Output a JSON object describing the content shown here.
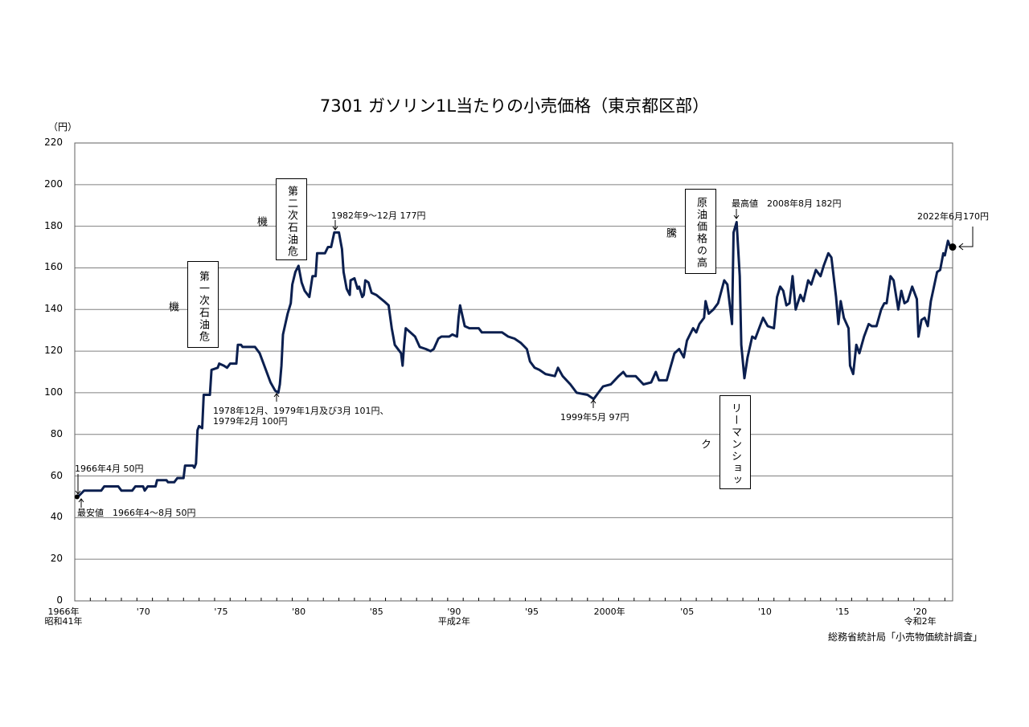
{
  "chart_data": {
    "type": "line",
    "title": "7301 ガソリン1L当たりの小売価格（東京都区部）",
    "ylabel": "（円）",
    "xlabel": "",
    "ylim": [
      0,
      220
    ],
    "xlim": [
      1966,
      2022.5
    ],
    "yticks": [
      0,
      20,
      40,
      60,
      80,
      100,
      120,
      140,
      160,
      180,
      200,
      220
    ],
    "grid": true,
    "xtick_labels": [
      {
        "year": 1966,
        "label": "1966年",
        "sub": "昭和41年"
      },
      {
        "year": 1970,
        "label": "'70",
        "sub": ""
      },
      {
        "year": 1975,
        "label": "'75",
        "sub": ""
      },
      {
        "year": 1980,
        "label": "'80",
        "sub": ""
      },
      {
        "year": 1985,
        "label": "'85",
        "sub": ""
      },
      {
        "year": 1990,
        "label": "'90",
        "sub": "平成2年"
      },
      {
        "year": 1995,
        "label": "'95",
        "sub": ""
      },
      {
        "year": 2000,
        "label": "2000年",
        "sub": ""
      },
      {
        "year": 2005,
        "label": "'05",
        "sub": ""
      },
      {
        "year": 2010,
        "label": "'10",
        "sub": ""
      },
      {
        "year": 2015,
        "label": "'15",
        "sub": ""
      },
      {
        "year": 2020,
        "label": "'20",
        "sub": "令和2年"
      }
    ],
    "series": [
      {
        "name": "ガソリン1L当たりの小売価格",
        "color": "#0b1f4f",
        "x": [
          1966.2,
          1966.6,
          1967.7,
          1967.9,
          1968.8,
          1969.0,
          1969.7,
          1969.9,
          1970.4,
          1970.5,
          1970.7,
          1971.2,
          1971.3,
          1971.9,
          1972.0,
          1972.4,
          1972.6,
          1973.0,
          1973.1,
          1973.6,
          1973.7,
          1973.8,
          1973.9,
          1974.0,
          1974.2,
          1974.3,
          1974.7,
          1974.8,
          1975.2,
          1975.3,
          1975.6,
          1975.8,
          1976.0,
          1976.4,
          1976.5,
          1976.7,
          1976.8,
          1977.6,
          1977.9,
          1978.3,
          1978.6,
          1978.9,
          1979.1,
          1979.2,
          1979.3,
          1979.4,
          1979.7,
          1979.9,
          1980.0,
          1980.2,
          1980.4,
          1980.6,
          1980.8,
          1981.1,
          1981.3,
          1981.5,
          1981.6,
          1982.1,
          1982.3,
          1982.5,
          1982.7,
          1983.0,
          1983.2,
          1983.3,
          1983.5,
          1983.7,
          1983.75,
          1984.0,
          1984.2,
          1984.3,
          1984.5,
          1984.6,
          1984.7,
          1984.9,
          1985.1,
          1985.4,
          1985.9,
          1986.2,
          1986.4,
          1986.6,
          1987.0,
          1987.1,
          1987.2,
          1987.3,
          1987.6,
          1987.9,
          1988.2,
          1988.6,
          1988.9,
          1989.1,
          1989.4,
          1989.6,
          1990.1,
          1990.3,
          1990.6,
          1990.7,
          1990.8,
          1991.1,
          1991.4,
          1992.0,
          1992.2,
          1992.8,
          1993.5,
          1993.9,
          1994.3,
          1994.7,
          1995.1,
          1995.3,
          1995.6,
          1995.9,
          1996.3,
          1996.9,
          1997.1,
          1997.4,
          1997.9,
          1998.3,
          1999.0,
          1999.4,
          1999.7,
          2000.0,
          2000.5,
          2001.0,
          2001.3,
          2001.5,
          2002.1,
          2002.6,
          2003.1,
          2003.4,
          2003.6,
          2004.1,
          2004.6,
          2004.9,
          2005.2,
          2005.4,
          2005.8,
          2006.0,
          2006.2,
          2006.5,
          2006.6,
          2006.8,
          2007.1,
          2007.4,
          2007.8,
          2008.0,
          2008.3,
          2008.4,
          2008.6,
          2008.8,
          2008.9,
          2009.1,
          2009.3,
          2009.6,
          2009.8,
          2010.1,
          2010.3,
          2010.6,
          2011.0,
          2011.2,
          2011.4,
          2011.6,
          2011.8,
          2012.0,
          2012.2,
          2012.4,
          2012.7,
          2012.9,
          2013.2,
          2013.4,
          2013.7,
          2014.0,
          2014.2,
          2014.5,
          2014.7,
          2015.0,
          2015.15,
          2015.3,
          2015.5,
          2015.8,
          2015.9,
          2016.1,
          2016.3,
          2016.5,
          2016.8,
          2017.1,
          2017.3,
          2017.6,
          2017.9,
          2018.1,
          2018.25,
          2018.5,
          2018.7,
          2019.0,
          2019.2,
          2019.4,
          2019.6,
          2019.9,
          2020.2,
          2020.3,
          2020.5,
          2020.7,
          2020.9,
          2021.1,
          2021.3,
          2021.5,
          2021.7,
          2021.9,
          2022.0,
          2022.2,
          2022.3,
          2022.5
        ],
        "values": [
          50,
          53,
          53,
          55,
          55,
          53,
          53,
          55,
          55,
          53,
          55,
          55,
          58,
          58,
          57,
          57,
          59,
          59,
          65,
          65,
          64,
          66,
          82,
          84,
          83,
          99,
          99,
          111,
          112,
          114,
          113,
          112,
          114,
          114,
          123,
          123,
          122,
          122,
          119,
          111,
          105,
          101,
          100,
          104,
          113,
          128,
          138,
          143,
          152,
          158,
          161,
          153,
          149,
          146,
          156,
          156,
          167,
          167,
          170,
          170,
          177,
          177,
          169,
          158,
          150,
          147,
          154,
          155,
          150,
          151,
          146,
          147,
          154,
          153,
          148,
          147,
          144,
          142,
          131,
          123,
          119,
          113,
          123,
          131,
          129,
          127,
          122,
          121,
          120,
          121,
          126,
          127,
          127,
          128,
          127,
          136,
          142,
          132,
          131,
          131,
          129,
          129,
          129,
          127,
          126,
          124,
          121,
          115,
          112,
          111,
          109,
          108,
          112,
          108,
          104,
          100,
          99,
          97,
          100,
          103,
          104,
          108,
          110,
          108,
          108,
          104,
          105,
          110,
          106,
          106,
          119,
          121,
          117,
          125,
          131,
          129,
          133,
          136,
          144,
          138,
          140,
          143,
          154,
          152,
          133,
          177,
          182,
          156,
          123,
          107,
          117,
          127,
          126,
          132,
          136,
          132,
          131,
          146,
          151,
          149,
          142,
          143,
          156,
          140,
          147,
          144,
          154,
          152,
          159,
          156,
          161,
          167,
          165,
          146,
          133,
          144,
          136,
          131,
          113,
          109,
          123,
          119,
          127,
          133,
          132,
          132,
          140,
          143,
          143,
          156,
          154,
          140,
          149,
          143,
          144,
          151,
          145,
          127,
          135,
          136,
          132,
          144,
          151,
          158,
          159,
          167,
          166,
          173,
          171,
          170
        ]
      }
    ],
    "annotations": {
      "first_oil_crisis": "第一次石油危機",
      "second_oil_crisis": "第二次石油危機",
      "crude_surge": "原油価格の高騰",
      "lehman_shock": "リーマンショック",
      "start": "1966年4月 50円",
      "min": "最安値　1966年4～8月 50円",
      "low1978_line1": "1978年12月、1979年1月及び3月 101円、",
      "low1978_line2": "1979年2月 100円",
      "peak1982": "1982年9～12月 177円",
      "low1999": "1999年5月 97円",
      "max": "最高値　2008年8月 182円",
      "latest": "2022年6月170円"
    },
    "source": "総務省統計局「小売物価統計調査」"
  }
}
